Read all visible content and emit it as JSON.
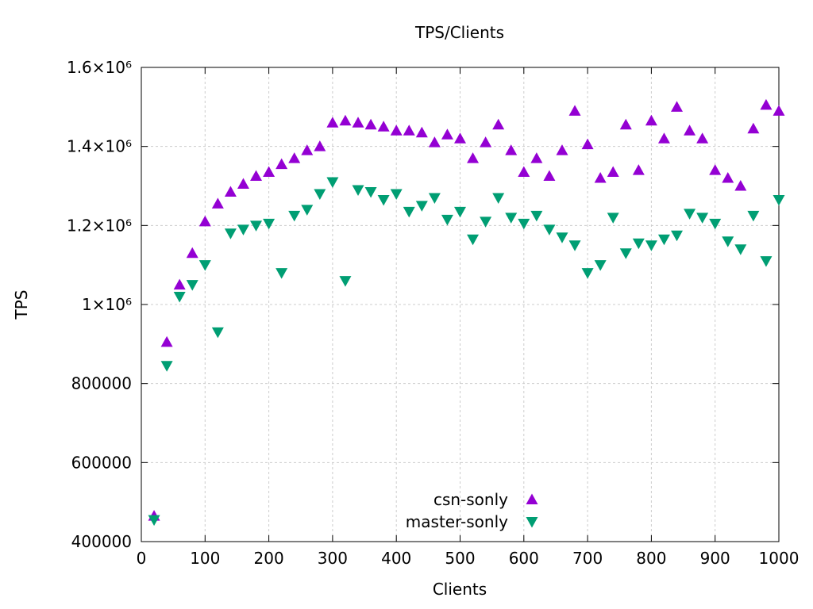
{
  "chart_data": {
    "type": "scatter",
    "title": "TPS/Clients",
    "xlabel": "Clients",
    "ylabel": "TPS",
    "xlim": [
      0,
      1000
    ],
    "ylim": [
      400000,
      1600000
    ],
    "grid": true,
    "legend_position": "inside bottom center",
    "xticks": [
      {
        "value": 0,
        "label": "0"
      },
      {
        "value": 100,
        "label": "100"
      },
      {
        "value": 200,
        "label": "200"
      },
      {
        "value": 300,
        "label": "300"
      },
      {
        "value": 400,
        "label": "400"
      },
      {
        "value": 500,
        "label": "500"
      },
      {
        "value": 600,
        "label": "600"
      },
      {
        "value": 700,
        "label": "700"
      },
      {
        "value": 800,
        "label": "800"
      },
      {
        "value": 900,
        "label": "900"
      },
      {
        "value": 1000,
        "label": "1000"
      }
    ],
    "yticks": [
      {
        "value": 400000,
        "label": "400000"
      },
      {
        "value": 600000,
        "label": "600000"
      },
      {
        "value": 800000,
        "label": "800000"
      },
      {
        "value": 1000000,
        "label": "1×10⁶"
      },
      {
        "value": 1200000,
        "label": "1.2×10⁶"
      },
      {
        "value": 1400000,
        "label": "1.4×10⁶"
      },
      {
        "value": 1600000,
        "label": "1.6×10⁶"
      }
    ],
    "x": [
      20,
      40,
      60,
      80,
      100,
      120,
      140,
      160,
      180,
      200,
      220,
      240,
      260,
      280,
      300,
      320,
      340,
      360,
      380,
      400,
      420,
      440,
      460,
      480,
      500,
      520,
      540,
      560,
      580,
      600,
      620,
      640,
      660,
      680,
      700,
      720,
      740,
      760,
      780,
      800,
      820,
      840,
      860,
      880,
      900,
      920,
      940,
      960,
      980,
      1000
    ],
    "series": [
      {
        "name": "csn-sonly",
        "marker": "triangle-up",
        "color": "#9400d3",
        "values": [
          465000,
          905000,
          1050000,
          1130000,
          1210000,
          1255000,
          1285000,
          1305000,
          1325000,
          1335000,
          1355000,
          1370000,
          1390000,
          1400000,
          1460000,
          1465000,
          1460000,
          1455000,
          1450000,
          1440000,
          1440000,
          1435000,
          1410000,
          1430000,
          1420000,
          1370000,
          1410000,
          1455000,
          1390000,
          1335000,
          1370000,
          1325000,
          1390000,
          1490000,
          1405000,
          1320000,
          1335000,
          1455000,
          1340000,
          1465000,
          1420000,
          1500000,
          1440000,
          1420000,
          1340000,
          1320000,
          1300000,
          1445000,
          1505000,
          1490000
        ]
      },
      {
        "name": "master-sonly",
        "marker": "triangle-down",
        "color": "#009e73",
        "values": [
          455000,
          845000,
          1020000,
          1050000,
          1100000,
          930000,
          1180000,
          1190000,
          1200000,
          1205000,
          1080000,
          1225000,
          1240000,
          1280000,
          1310000,
          1060000,
          1290000,
          1285000,
          1265000,
          1280000,
          1235000,
          1250000,
          1270000,
          1215000,
          1235000,
          1165000,
          1210000,
          1270000,
          1220000,
          1205000,
          1225000,
          1190000,
          1170000,
          1150000,
          1080000,
          1100000,
          1220000,
          1130000,
          1155000,
          1150000,
          1165000,
          1175000,
          1230000,
          1220000,
          1205000,
          1160000,
          1140000,
          1225000,
          1110000,
          1265000
        ]
      }
    ]
  }
}
